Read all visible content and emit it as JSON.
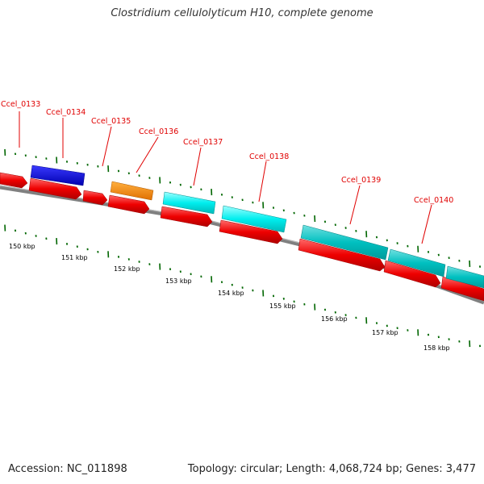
{
  "header": {
    "title": "Clostridium cellulolyticum H10, complete genome"
  },
  "footer": {
    "accession": "Accession: NC_011898",
    "summary": "Topology: circular; Length: 4,068,724 bp; Genes: 3,477"
  },
  "genes": [
    {
      "label": "Ccel_0133"
    },
    {
      "label": "Ccel_0134"
    },
    {
      "label": "Ccel_0135"
    },
    {
      "label": "Ccel_0136"
    },
    {
      "label": "Ccel_0137"
    },
    {
      "label": "Ccel_0138"
    },
    {
      "label": "Ccel_0139"
    },
    {
      "label": "Ccel_0140"
    }
  ],
  "scale_ticks": [
    "150 kbp",
    "151 kbp",
    "152 kbp",
    "153 kbp",
    "154 kbp",
    "155 kbp",
    "156 kbp",
    "157 kbp",
    "158 kbp"
  ],
  "colors": {
    "cds_forward": "#ee0000",
    "gene_blue": "#0000dd",
    "gene_orange": "#ff8c00",
    "gene_cyan": "#00eeee",
    "gene_teal": "#00c8c8",
    "backbone": "#808080",
    "tick": "#006600",
    "label": "#e00000"
  }
}
